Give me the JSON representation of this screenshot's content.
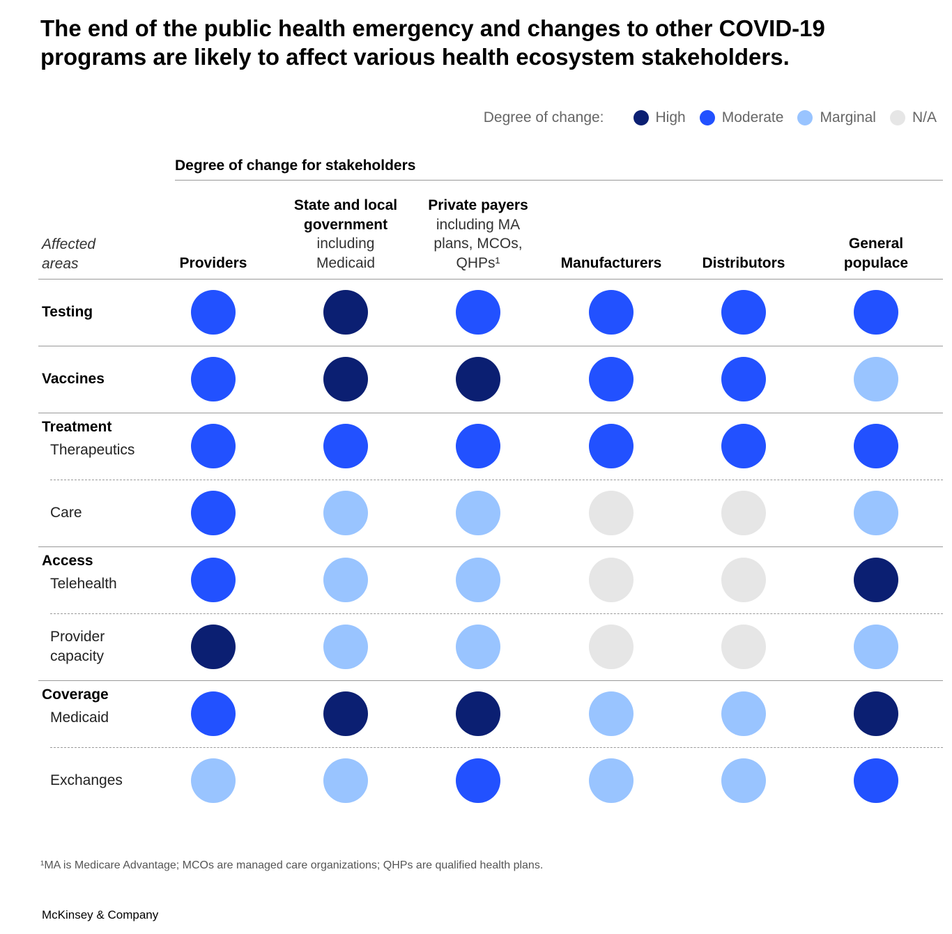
{
  "title": "The end of the public health emergency and changes to other COVID-19 programs are likely to affect various health ecosystem stakeholders.",
  "legend": {
    "title": "Degree of change:",
    "items": [
      {
        "label": "High",
        "color": "#0b1f72"
      },
      {
        "label": "Moderate",
        "color": "#2251ff"
      },
      {
        "label": "Marginal",
        "color": "#99c4ff"
      },
      {
        "label": "N/A",
        "color": "#e6e6e6"
      }
    ]
  },
  "group_label": "Degree of change for stakeholders",
  "axis_label_line1": "Affected",
  "axis_label_line2": "areas",
  "columns": [
    {
      "bold": [
        "Providers"
      ],
      "sub": []
    },
    {
      "bold": [
        "State and local",
        "government"
      ],
      "sub": [
        "including",
        "Medicaid"
      ]
    },
    {
      "bold": [
        "Private payers"
      ],
      "sub": [
        "including MA",
        "plans, MCOs,",
        "QHPs¹"
      ]
    },
    {
      "bold": [
        "Manufacturers"
      ],
      "sub": []
    },
    {
      "bold": [
        "Distributors"
      ],
      "sub": []
    },
    {
      "bold": [
        "General",
        "populace"
      ],
      "sub": []
    }
  ],
  "chart_data": {
    "type": "table",
    "levels": [
      "High",
      "Moderate",
      "Marginal",
      "N/A"
    ],
    "columns": [
      "Providers",
      "State and local government including Medicaid",
      "Private payers including MA plans, MCOs, QHPs¹",
      "Manufacturers",
      "Distributors",
      "General populace"
    ],
    "rows": [
      {
        "group": "Testing",
        "label": "",
        "values": [
          "Moderate",
          "High",
          "Moderate",
          "Moderate",
          "Moderate",
          "Moderate"
        ]
      },
      {
        "group": "Vaccines",
        "label": "",
        "values": [
          "Moderate",
          "High",
          "High",
          "Moderate",
          "Moderate",
          "Marginal"
        ]
      },
      {
        "group": "Treatment",
        "label": "Therapeutics",
        "values": [
          "Moderate",
          "Moderate",
          "Moderate",
          "Moderate",
          "Moderate",
          "Moderate"
        ]
      },
      {
        "group": "",
        "label": "Care",
        "values": [
          "Moderate",
          "Marginal",
          "Marginal",
          "N/A",
          "N/A",
          "Marginal"
        ]
      },
      {
        "group": "Access",
        "label": "Telehealth",
        "values": [
          "Moderate",
          "Marginal",
          "Marginal",
          "N/A",
          "N/A",
          "High"
        ]
      },
      {
        "group": "",
        "label": "Provider capacity",
        "values": [
          "High",
          "Marginal",
          "Marginal",
          "N/A",
          "N/A",
          "Marginal"
        ]
      },
      {
        "group": "Coverage",
        "label": "Medicaid",
        "values": [
          "Moderate",
          "High",
          "High",
          "Marginal",
          "Marginal",
          "High"
        ]
      },
      {
        "group": "",
        "label": "Exchanges",
        "values": [
          "Marginal",
          "Marginal",
          "Moderate",
          "Marginal",
          "Marginal",
          "Moderate"
        ]
      }
    ]
  },
  "footnote": "¹MA is Medicare Advantage; MCOs are managed care organizations; QHPs are qualified health plans.",
  "source": "McKinsey & Company"
}
